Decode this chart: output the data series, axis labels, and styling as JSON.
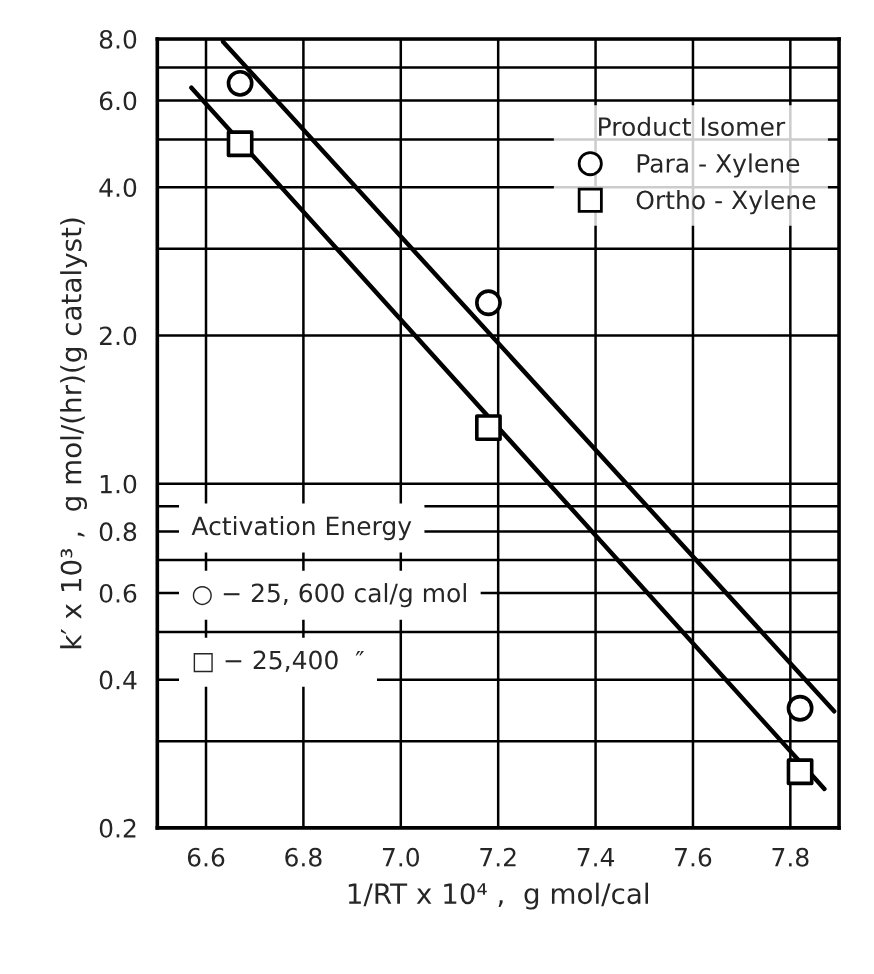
{
  "chart_data": {
    "type": "scatter",
    "xlabel": "1/RT x 10⁴ ,  g mol/cal",
    "ylabel": "k′ x 10³ ,  g mol/(hr)(g catalyst)",
    "legend_title": "Product Isomer",
    "legend": "top right",
    "log": "y",
    "grid": true,
    "xlim": [
      6.5,
      7.9
    ],
    "ylim": [
      0.2,
      8.0
    ],
    "xticks": [
      6.6,
      6.8,
      {
        "value": 7.0,
        "label": "7.0"
      },
      7.2,
      7.4,
      7.6,
      7.8
    ],
    "yticks": [
      0.2,
      {
        "value": 0.3,
        "label": null
      },
      0.4,
      {
        "value": 0.5,
        "label": null
      },
      0.6,
      {
        "value": 0.7,
        "label": null
      },
      0.8,
      {
        "value": 0.9,
        "label": null
      },
      {
        "value": 1.0,
        "label": "1.0"
      },
      {
        "value": 2.0,
        "label": "2.0"
      },
      {
        "value": 3.0,
        "label": null
      },
      {
        "value": 4.0,
        "label": "4.0"
      },
      {
        "value": 5.0,
        "label": null
      },
      {
        "value": 6.0,
        "label": "6.0"
      },
      {
        "value": 7.0,
        "label": null
      },
      {
        "value": 8.0,
        "label": "8.0"
      }
    ],
    "series": [
      {
        "name": "Para - Xylene",
        "marker": "circle",
        "color": "#000000",
        "x": [
          6.67,
          7.18,
          7.82
        ],
        "values": [
          6.5,
          2.33,
          0.35
        ]
      },
      {
        "name": "Ortho - Xylene",
        "marker": "square",
        "color": "#000000",
        "x": [
          6.67,
          7.18,
          7.82
        ],
        "values": [
          4.9,
          1.3,
          0.26
        ]
      },
      {
        "type": "line",
        "marker": "none",
        "color": "#000000",
        "x": [
          6.635,
          7.89
        ],
        "values": [
          7.9,
          0.345
        ]
      },
      {
        "type": "line",
        "marker": "none",
        "color": "#000000",
        "x": [
          6.57,
          7.87
        ],
        "values": [
          6.37,
          0.24
        ]
      }
    ],
    "annotations": [
      "Activation Energy",
      "○ − 25, 600 cal/g mol",
      "□ − 25,400  ″"
    ]
  }
}
